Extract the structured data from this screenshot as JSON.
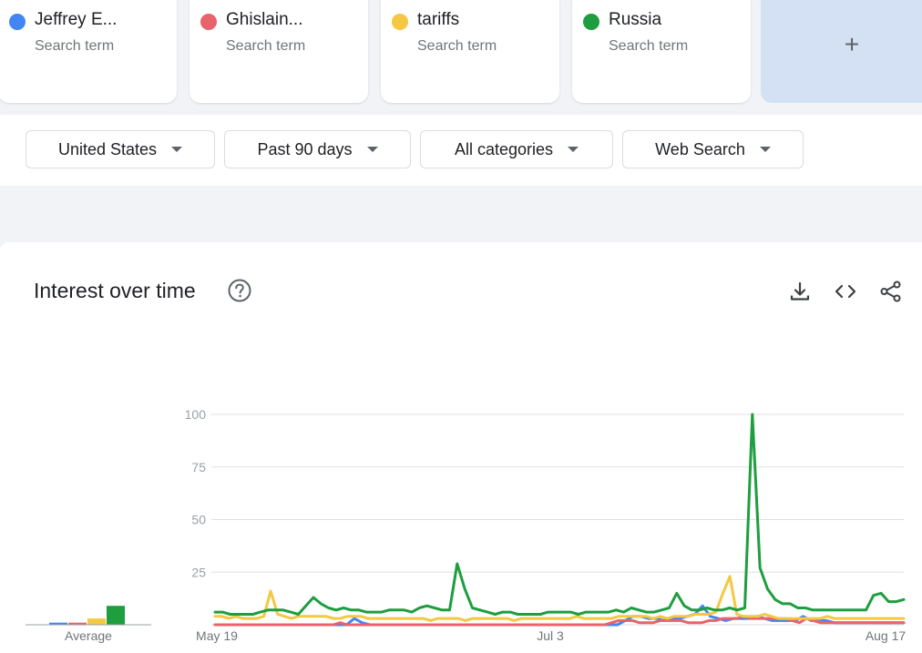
{
  "terms": [
    {
      "name": "Jeffrey E...",
      "sub": "Search term",
      "color": "#4285f4"
    },
    {
      "name": "Ghislain...",
      "sub": "Search term",
      "color": "#e8636c"
    },
    {
      "name": "tariffs",
      "sub": "Search term",
      "color": "#f4c842"
    },
    {
      "name": "Russia",
      "sub": "Search term",
      "color": "#1e9e3e"
    }
  ],
  "add_term_label": "+",
  "filters": {
    "region": "United States",
    "time": "Past 90 days",
    "category": "All categories",
    "search_type": "Web Search"
  },
  "panel": {
    "title": "Interest over time",
    "icons": [
      "help-icon",
      "download-icon",
      "embed-icon",
      "share-icon"
    ]
  },
  "chart_data": {
    "type": "line",
    "x_tick_labels": [
      "May 19",
      "Jul 3",
      "Aug 17"
    ],
    "y_ticks": [
      25,
      50,
      75,
      100
    ],
    "ylim": [
      0,
      100
    ],
    "grid": true,
    "average_label": "Average",
    "averages": [
      1,
      1,
      3,
      9
    ],
    "series": [
      {
        "name": "Jeffrey E...",
        "color": "#4285f4",
        "values": [
          0,
          0,
          0,
          0,
          0,
          0,
          0,
          0,
          0,
          0,
          0,
          0,
          0,
          0,
          0,
          0,
          0,
          0,
          3,
          1,
          0,
          0,
          0,
          0,
          0,
          0,
          0,
          0,
          0,
          0,
          0,
          0,
          0,
          0,
          0,
          0,
          0,
          0,
          0,
          0,
          0,
          0,
          0,
          0,
          0,
          0,
          0,
          0,
          0,
          0,
          0,
          0,
          0,
          2,
          4,
          4,
          3,
          3,
          2,
          3,
          3,
          4,
          5,
          9,
          4,
          3,
          2,
          3,
          3,
          3,
          4,
          3,
          2,
          2,
          2,
          2,
          4,
          2,
          2,
          2,
          1,
          1,
          1,
          1,
          1,
          1,
          1,
          1,
          1,
          1
        ]
      },
      {
        "name": "Ghislain...",
        "color": "#e8636c",
        "values": [
          0,
          0,
          0,
          0,
          0,
          0,
          0,
          0,
          0,
          0,
          0,
          0,
          0,
          0,
          0,
          0,
          0,
          0,
          1,
          0,
          0,
          0,
          0,
          0,
          0,
          0,
          0,
          0,
          0,
          0,
          0,
          0,
          0,
          0,
          0,
          0,
          0,
          0,
          0,
          0,
          0,
          0,
          0,
          0,
          0,
          0,
          0,
          0,
          0,
          0,
          0,
          0,
          0,
          0,
          0,
          0,
          0,
          1,
          2,
          2,
          2,
          1,
          1,
          1,
          2,
          2,
          2,
          2,
          1,
          1,
          1,
          2,
          2,
          3,
          3,
          3,
          4,
          3,
          3,
          3,
          3,
          3,
          3,
          2,
          1,
          3,
          2,
          1,
          1,
          1,
          1,
          1,
          1,
          1,
          1,
          1,
          1,
          1,
          1,
          1
        ]
      },
      {
        "name": "tariffs",
        "color": "#f4c842",
        "values": [
          4,
          4,
          3,
          4,
          3,
          3,
          3,
          4,
          16,
          5,
          4,
          3,
          4,
          4,
          4,
          4,
          4,
          3,
          3,
          4,
          4,
          4,
          3,
          3,
          3,
          3,
          3,
          3,
          3,
          3,
          3,
          2,
          3,
          3,
          3,
          3,
          2,
          3,
          3,
          3,
          3,
          3,
          3,
          2,
          3,
          3,
          3,
          3,
          3,
          3,
          3,
          3,
          4,
          3,
          3,
          3,
          3,
          3,
          4,
          4,
          4,
          4,
          4,
          3,
          4,
          3,
          4,
          4,
          4,
          5,
          5,
          5,
          6,
          15,
          23,
          5,
          4,
          4,
          4,
          5,
          4,
          3,
          3,
          3,
          3,
          3,
          3,
          3,
          4,
          3,
          3,
          3,
          3,
          3,
          3,
          3,
          3,
          3,
          3,
          3
        ]
      },
      {
        "name": "Russia",
        "color": "#1e9e3e",
        "values": [
          6,
          6,
          5,
          5,
          5,
          5,
          6,
          7,
          7,
          7,
          6,
          5,
          9,
          13,
          10,
          8,
          7,
          8,
          7,
          7,
          6,
          6,
          6,
          7,
          7,
          7,
          6,
          8,
          9,
          8,
          7,
          7,
          29,
          17,
          8,
          7,
          6,
          5,
          6,
          6,
          5,
          5,
          5,
          5,
          6,
          6,
          6,
          6,
          5,
          6,
          6,
          6,
          6,
          7,
          6,
          8,
          7,
          6,
          6,
          7,
          8,
          15,
          9,
          7,
          7,
          8,
          7,
          7,
          8,
          7,
          8,
          100,
          27,
          17,
          12,
          10,
          10,
          8,
          8,
          7,
          7,
          7,
          7,
          7,
          7,
          7,
          7,
          14,
          15,
          11,
          11,
          12
        ]
      }
    ]
  }
}
